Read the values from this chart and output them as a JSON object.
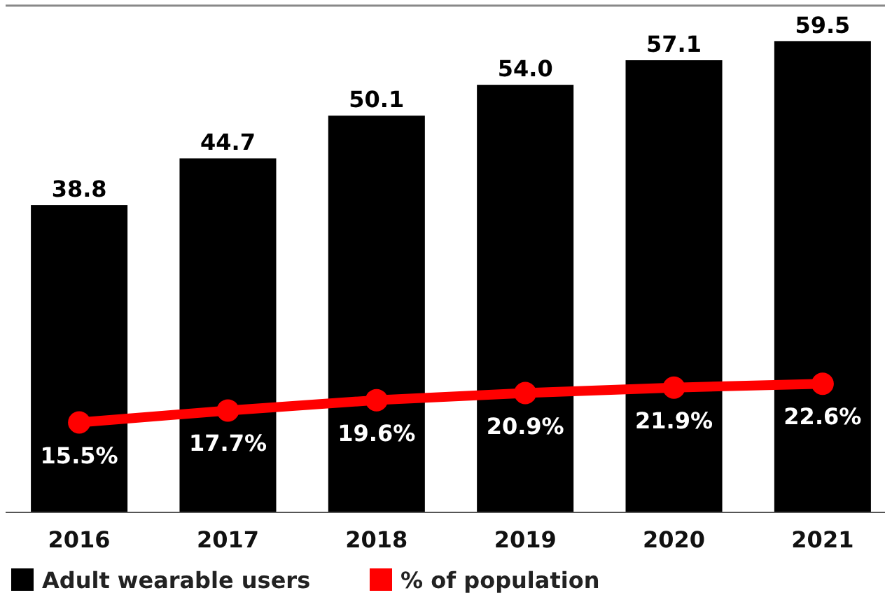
{
  "chart_data": {
    "type": "bar",
    "categories": [
      "2016",
      "2017",
      "2018",
      "2019",
      "2020",
      "2021"
    ],
    "ylim": [
      0,
      64
    ],
    "y2lim": [
      -1,
      92
    ],
    "tick_labels": "x",
    "legend": "bottom left",
    "series": [
      {
        "name": "Adult wearable users",
        "color": "#000000",
        "values": [
          38.8,
          44.7,
          50.1,
          54.0,
          57.1,
          59.5
        ],
        "value_labels": [
          "38.8",
          "44.7",
          "50.1",
          "54.0",
          "57.1",
          "59.5"
        ]
      },
      {
        "name": "% of population",
        "type": "line",
        "axis": "y2",
        "color": "#ff0000",
        "marker": "circle",
        "values": [
          15.5,
          17.7,
          19.6,
          20.9,
          21.9,
          22.6
        ],
        "value_labels": [
          "15.5%",
          "17.7%",
          "19.6%",
          "20.9%",
          "21.9%",
          "22.6%"
        ]
      }
    ]
  }
}
